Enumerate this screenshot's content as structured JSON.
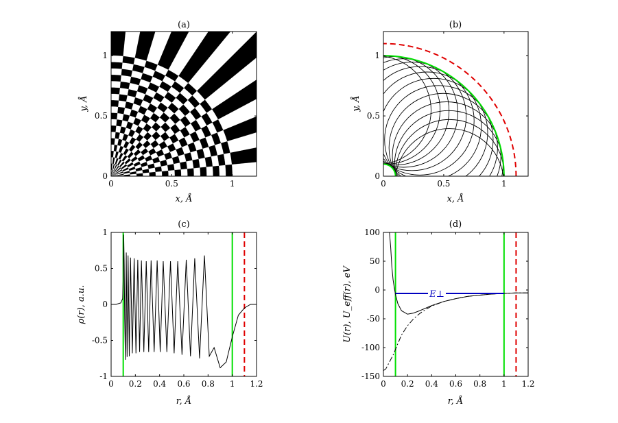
{
  "chart_data": [
    {
      "id": "a",
      "type": "heatmap",
      "title": "(a)",
      "xlabel": "x, Å",
      "ylabel": "y, Å",
      "xlim": [
        0,
        1.2
      ],
      "ylim": [
        0,
        1.2
      ],
      "xticks": [
        "0",
        "0.5",
        "1"
      ],
      "yticks": [
        "0",
        "0.5",
        "1"
      ],
      "pattern": {
        "angular_sectors": 16,
        "radial_sectors": 19,
        "r_max": 1.0,
        "colors": [
          "#000000",
          "#ffffff"
        ]
      }
    },
    {
      "id": "b",
      "type": "line",
      "title": "(b)",
      "xlabel": "x, Å",
      "ylabel": "y, Å",
      "xlim": [
        0,
        1.2
      ],
      "ylim": [
        0,
        1.2
      ],
      "xticks": [
        "0",
        "0.5",
        "1"
      ],
      "yticks": [
        "0",
        "0.5",
        "1"
      ],
      "series": [
        {
          "style": "solid",
          "color": "#00e000",
          "radius": 1.0
        },
        {
          "style": "solid",
          "color": "#00e000",
          "radius": 0.1
        },
        {
          "style": "dashed",
          "color": "#e00000",
          "radius": 1.1
        }
      ],
      "trajectories": {
        "color": "#000000",
        "count": 14,
        "inner_radius": 0.1,
        "outer_radius": 1.0
      }
    },
    {
      "id": "c",
      "type": "line",
      "title": "(c)",
      "xlabel": "r, Å",
      "ylabel": "ρ(r), a.u.",
      "xlim": [
        0,
        1.2
      ],
      "ylim": [
        -1,
        1
      ],
      "xticks": [
        "0",
        "0.2",
        "0.4",
        "0.6",
        "0.8",
        "1",
        "1.2"
      ],
      "yticks": [
        "-1",
        "-0.5",
        "0",
        "0.5",
        "1"
      ],
      "vlines": [
        {
          "x": 0.1,
          "color": "#00e000",
          "style": "solid"
        },
        {
          "x": 1.0,
          "color": "#00e000",
          "style": "solid"
        },
        {
          "x": 1.1,
          "color": "#e00000",
          "style": "dashed"
        }
      ],
      "x": [
        0,
        0.04,
        0.08,
        0.095,
        0.1,
        0.104,
        0.108,
        0.112,
        0.118,
        0.125,
        0.132,
        0.14,
        0.15,
        0.16,
        0.175,
        0.19,
        0.205,
        0.22,
        0.235,
        0.25,
        0.27,
        0.29,
        0.31,
        0.33,
        0.355,
        0.38,
        0.405,
        0.43,
        0.46,
        0.49,
        0.52,
        0.55,
        0.585,
        0.62,
        0.655,
        0.69,
        0.73,
        0.77,
        0.81,
        0.85,
        0.9,
        0.95,
        1.0,
        1.05,
        1.1,
        1.15,
        1.2
      ],
      "values": [
        0,
        0,
        0.02,
        0.08,
        0.38,
        0.97,
        0.55,
        -0.2,
        -0.77,
        0.72,
        -0.73,
        0.68,
        -0.72,
        0.65,
        -0.68,
        0.64,
        -0.68,
        0.62,
        -0.66,
        0.61,
        -0.66,
        0.6,
        -0.66,
        0.61,
        -0.66,
        0.61,
        -0.66,
        0.6,
        -0.66,
        0.6,
        -0.68,
        0.6,
        -0.7,
        0.62,
        -0.72,
        0.64,
        -0.75,
        0.68,
        -0.72,
        -0.6,
        -0.88,
        -0.8,
        -0.45,
        -0.15,
        -0.05,
        0,
        0
      ]
    },
    {
      "id": "d",
      "type": "line",
      "title": "(d)",
      "xlabel": "r, Å",
      "ylabel": "U(r), U_eff(r), eV",
      "xlim": [
        0,
        1.2
      ],
      "ylim": [
        -150,
        100
      ],
      "xticks": [
        "0",
        "0.2",
        "0.4",
        "0.6",
        "0.8",
        "1",
        "1.2"
      ],
      "yticks": [
        "-150",
        "-100",
        "-50",
        "0",
        "50",
        "100"
      ],
      "vlines": [
        {
          "x": 0.1,
          "color": "#00e000",
          "style": "solid"
        },
        {
          "x": 1.0,
          "color": "#00e000",
          "style": "solid"
        },
        {
          "x": 1.1,
          "color": "#e00000",
          "style": "dashed"
        }
      ],
      "hline": {
        "y": -6,
        "x0": 0.1,
        "x1": 1.0,
        "color": "#0000c0",
        "label": "E⊥"
      },
      "series": [
        {
          "style": "solid",
          "color": "#000000",
          "x": [
            0.05,
            0.06,
            0.07,
            0.08,
            0.09,
            0.1,
            0.12,
            0.15,
            0.2,
            0.25,
            0.3,
            0.4,
            0.5,
            0.6,
            0.7,
            0.8,
            0.9,
            1.0,
            1.1,
            1.2
          ],
          "values": [
            100,
            75,
            40,
            18,
            4,
            -8,
            -24,
            -36,
            -42,
            -40,
            -36,
            -27,
            -20,
            -15,
            -11,
            -9,
            -7,
            -6,
            -5,
            -5
          ]
        },
        {
          "style": "dashdot",
          "color": "#000000",
          "x": [
            0,
            0.02,
            0.05,
            0.08,
            0.1,
            0.12,
            0.15,
            0.2,
            0.25,
            0.3,
            0.35,
            0.4,
            0.5,
            0.6,
            0.7,
            0.8,
            0.9,
            1.0,
            1.1,
            1.2
          ],
          "values": [
            -140,
            -137,
            -125,
            -113,
            -103,
            -93,
            -78,
            -62,
            -50,
            -41,
            -34,
            -28,
            -20,
            -15,
            -11,
            -9,
            -7,
            -6,
            -5,
            -5
          ]
        }
      ]
    }
  ]
}
